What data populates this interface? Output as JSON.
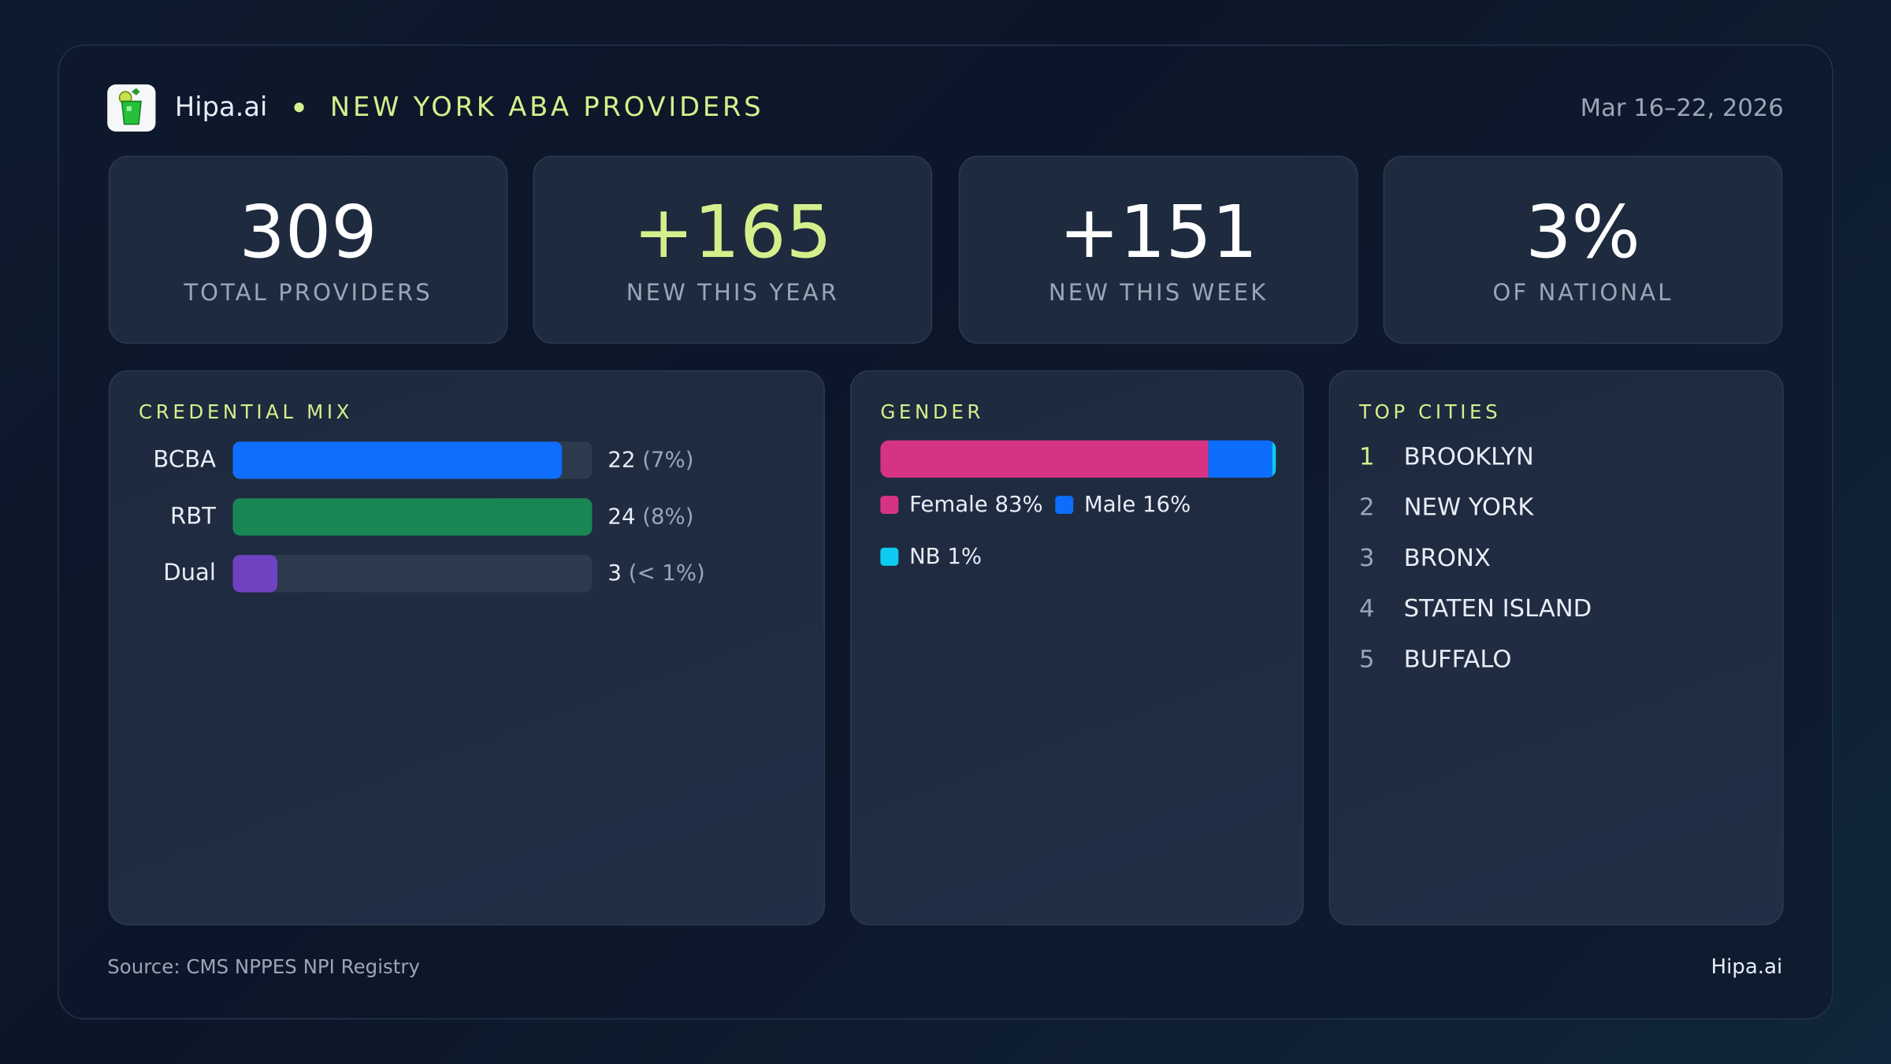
{
  "header": {
    "brand": "Hipa.ai",
    "title": "NEW YORK ABA PROVIDERS",
    "date_range": "Mar 16–22, 2026",
    "accent": "#d4f08c"
  },
  "kpis": [
    {
      "value": "309",
      "label": "TOTAL PROVIDERS"
    },
    {
      "value": "+165",
      "label": "NEW THIS YEAR"
    },
    {
      "value": "+151",
      "label": "NEW THIS WEEK"
    },
    {
      "value": "3%",
      "label": "OF NATIONAL"
    }
  ],
  "credential_mix": {
    "title": "CREDENTIAL MIX",
    "rows": [
      {
        "label": "BCBA",
        "count": "22",
        "pct": "(7%)",
        "value": 22,
        "color": "#0f6efd"
      },
      {
        "label": "RBT",
        "count": "24",
        "pct": "(8%)",
        "value": 24,
        "color": "#198754"
      },
      {
        "label": "Dual",
        "count": "3",
        "pct": "(< 1%)",
        "value": 3,
        "color": "#6f42c1"
      }
    ]
  },
  "gender": {
    "title": "GENDER",
    "segments": [
      {
        "label": "Female 83%",
        "value": 83,
        "color": "#d63384"
      },
      {
        "label": "Male 16%",
        "value": 16,
        "color": "#0d6efd"
      },
      {
        "label": "NB 1%",
        "value": 1,
        "color": "#0dcaf0"
      }
    ]
  },
  "top_cities": {
    "title": "TOP CITIES",
    "items": [
      {
        "rank": "1",
        "name": "BROOKLYN"
      },
      {
        "rank": "2",
        "name": "NEW YORK"
      },
      {
        "rank": "3",
        "name": "BRONX"
      },
      {
        "rank": "4",
        "name": "STATEN ISLAND"
      },
      {
        "rank": "5",
        "name": "BUFFALO"
      }
    ]
  },
  "footer": {
    "source": "Source: CMS NPPES NPI Registry",
    "brand": "Hipa.ai"
  }
}
